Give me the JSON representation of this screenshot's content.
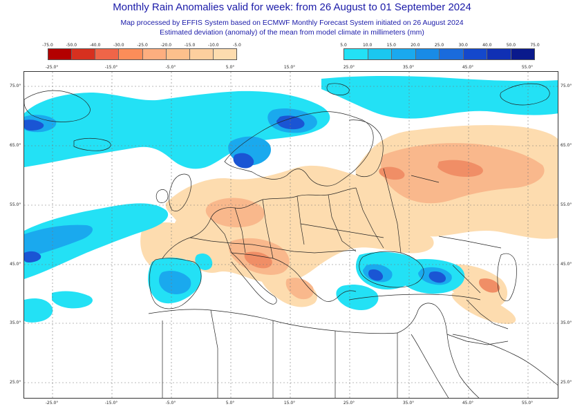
{
  "title": "Monthly Rain Anomalies valid for week: from 26 August to 01 September 2024",
  "subtitle1": "Map processed by EFFIS System based on ECMWF Monthly Forecast System initiated on 26 August 2024",
  "subtitle2": "Estimated deviation (anomaly) of the mean from model climate in millimeters (mm)",
  "legend_negative": {
    "ticks": [
      "-75.0",
      "-50.0",
      "-40.0",
      "-30.0",
      "-25.0",
      "-20.0",
      "-15.0",
      "-10.0",
      "-5.0"
    ],
    "colors": [
      "#b30000",
      "#d7301f",
      "#ef6548",
      "#fc8d59",
      "#fdae7f",
      "#fdc08c",
      "#fdcf9e",
      "#fddcaf"
    ]
  },
  "legend_positive": {
    "ticks": [
      "5.0",
      "10.0",
      "15.0",
      "20.0",
      "25.0",
      "30.0",
      "40.0",
      "50.0",
      "75.0"
    ],
    "colors": [
      "#23e1f5",
      "#1bc7f0",
      "#1aa9ee",
      "#198be6",
      "#1a6bdc",
      "#1448cc",
      "#1030b4",
      "#0a1a8c"
    ]
  },
  "axes": {
    "lon_top": [
      "-25.0°",
      "-15.0°",
      "-5.0°",
      "5.0°",
      "15.0°",
      "25.0°",
      "35.0°",
      "45.0°",
      "55.0°"
    ],
    "lon_bottom": [
      "-25.0°",
      "-15.0°",
      "-5.0°",
      "5.0°",
      "15.0°",
      "25.0°",
      "35.0°",
      "45.0°",
      "55.0°"
    ],
    "lat_left": [
      "75.0°",
      "65.0°",
      "55.0°",
      "45.0°",
      "35.0°",
      "25.0°"
    ],
    "lat_right": [
      "75.0°",
      "65.0°",
      "55.0°",
      "45.0°",
      "35.0°",
      "25.0°"
    ]
  },
  "colors": {
    "title_text": "#1a1aa8",
    "dry_light": "#fddcaf",
    "dry_medium": "#f9b88c",
    "dry_strong": "#f08e66",
    "wet_light": "#23e1f5",
    "wet_medium": "#1aa9ee",
    "wet_strong": "#1a55d4",
    "border_lines": "#222222"
  }
}
